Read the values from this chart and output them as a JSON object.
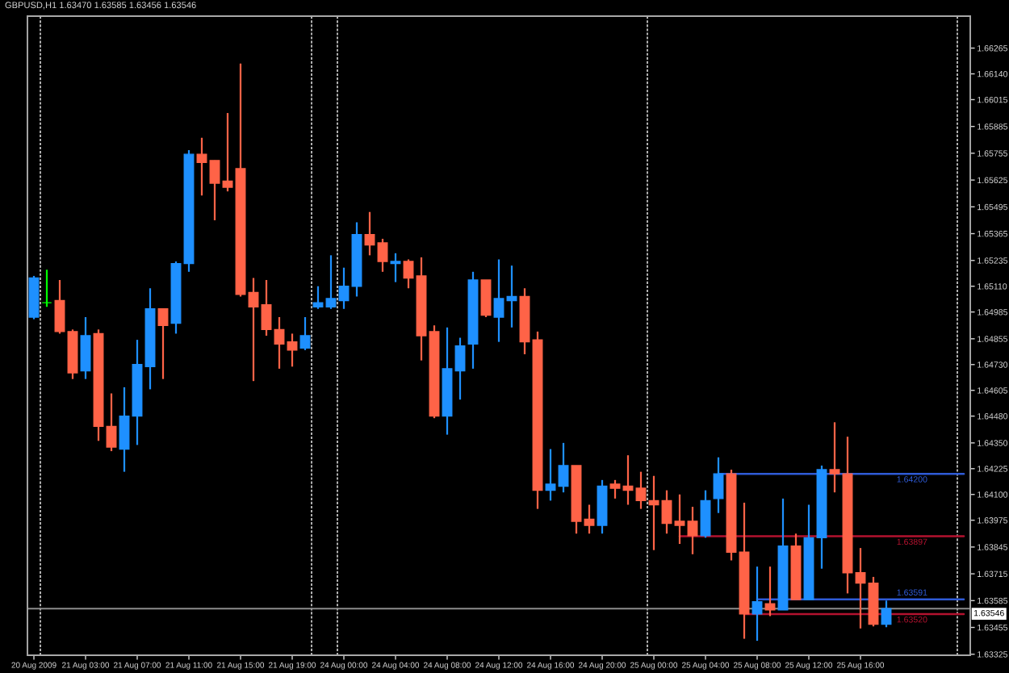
{
  "chart_data": {
    "type": "candlestick",
    "title": "GBPUSD,H1 1.63470 1.63585 1.63456 1.63546",
    "categories": [
      "20 Aug 2009",
      null,
      null,
      null,
      "21 Aug 03:00",
      null,
      null,
      null,
      "21 Aug 07:00",
      null,
      null,
      null,
      "21 Aug 11:00",
      null,
      null,
      null,
      "21 Aug 15:00",
      null,
      null,
      null,
      "21 Aug 19:00",
      null,
      null,
      null,
      "24 Aug 00:00",
      null,
      null,
      null,
      "24 Aug 04:00",
      null,
      null,
      null,
      "24 Aug 08:00",
      null,
      null,
      null,
      "24 Aug 12:00",
      null,
      null,
      null,
      "24 Aug 16:00",
      null,
      null,
      null,
      "24 Aug 20:00",
      null,
      null,
      null,
      "25 Aug 00:00",
      null,
      null,
      null,
      "25 Aug 04:00",
      null,
      null,
      null,
      "25 Aug 08:00",
      null,
      null,
      null,
      "25 Aug 12:00",
      null,
      null,
      null,
      "25 Aug 16:00",
      null,
      null,
      null,
      null,
      null,
      null,
      null,
      null
    ],
    "ohlc": [
      [
        1.6496,
        1.6516,
        1.6495,
        1.6515
      ],
      [
        1.6503,
        1.6519,
        1.6501,
        1.6503
      ],
      [
        1.6504,
        1.6514,
        1.6488,
        1.6489
      ],
      [
        1.6489,
        1.649,
        1.6466,
        1.6469
      ],
      [
        1.647,
        1.6496,
        1.6466,
        1.6487
      ],
      [
        1.6488,
        1.649,
        1.6436,
        1.6443
      ],
      [
        1.6443,
        1.6459,
        1.6431,
        1.6433
      ],
      [
        1.6432,
        1.6462,
        1.6421,
        1.6448
      ],
      [
        1.6448,
        1.6485,
        1.6434,
        1.6473
      ],
      [
        1.6472,
        1.651,
        1.6461,
        1.65
      ],
      [
        1.65,
        1.65,
        1.6466,
        1.6492
      ],
      [
        1.6493,
        1.6523,
        1.6488,
        1.6522
      ],
      [
        1.6522,
        1.6577,
        1.6518,
        1.6575
      ],
      [
        1.6575,
        1.6583,
        1.6555,
        1.6571
      ],
      [
        1.6572,
        1.6572,
        1.6543,
        1.6561
      ],
      [
        1.6562,
        1.6595,
        1.6557,
        1.6559
      ],
      [
        1.6568,
        1.6619,
        1.6506,
        1.6507
      ],
      [
        1.6508,
        1.6515,
        1.6465,
        1.6501
      ],
      [
        1.6502,
        1.6514,
        1.6487,
        1.649
      ],
      [
        1.649,
        1.6496,
        1.6471,
        1.6483
      ],
      [
        1.6484,
        1.6488,
        1.6472,
        1.648
      ],
      [
        1.6481,
        1.6496,
        1.648,
        1.6487
      ],
      [
        1.6501,
        1.6511,
        1.65,
        1.6503
      ],
      [
        1.6501,
        1.6526,
        1.65,
        1.6505
      ],
      [
        1.6504,
        1.652,
        1.65,
        1.6511
      ],
      [
        1.6511,
        1.6542,
        1.6506,
        1.6536
      ],
      [
        1.6536,
        1.6547,
        1.6526,
        1.6531
      ],
      [
        1.6532,
        1.6534,
        1.6518,
        1.6523
      ],
      [
        1.6522,
        1.6527,
        1.6513,
        1.6523
      ],
      [
        1.6523,
        1.6524,
        1.651,
        1.6515
      ],
      [
        1.6516,
        1.6525,
        1.6475,
        1.6487
      ],
      [
        1.6489,
        1.6492,
        1.6447,
        1.6448
      ],
      [
        1.6448,
        1.6491,
        1.6439,
        1.6471
      ],
      [
        1.647,
        1.6486,
        1.6456,
        1.6482
      ],
      [
        1.6483,
        1.6518,
        1.6471,
        1.6514
      ],
      [
        1.6514,
        1.6514,
        1.6496,
        1.6497
      ],
      [
        1.6496,
        1.6524,
        1.6484,
        1.6505
      ],
      [
        1.6504,
        1.6521,
        1.6491,
        1.6506
      ],
      [
        1.6506,
        1.651,
        1.6478,
        1.6484
      ],
      [
        1.6485,
        1.6489,
        1.6403,
        1.6412
      ],
      [
        1.6412,
        1.6432,
        1.6407,
        1.6415
      ],
      [
        1.6414,
        1.6435,
        1.6411,
        1.6424
      ],
      [
        1.6424,
        1.6424,
        1.6391,
        1.6397
      ],
      [
        1.6398,
        1.6405,
        1.6391,
        1.6395
      ],
      [
        1.6395,
        1.6417,
        1.6391,
        1.6414
      ],
      [
        1.6415,
        1.6417,
        1.6408,
        1.6413
      ],
      [
        1.6414,
        1.6429,
        1.6405,
        1.6412
      ],
      [
        1.6413,
        1.6421,
        1.6403,
        1.6407
      ],
      [
        1.6407,
        1.6419,
        1.6383,
        1.6405
      ],
      [
        1.6407,
        1.6412,
        1.6391,
        1.6396
      ],
      [
        1.6397,
        1.641,
        1.6386,
        1.6395
      ],
      [
        1.6397,
        1.6404,
        1.6381,
        1.639
      ],
      [
        1.639,
        1.6412,
        1.6389,
        1.6407
      ],
      [
        1.6408,
        1.6428,
        1.6401,
        1.642
      ],
      [
        1.642,
        1.6422,
        1.6378,
        1.6382
      ],
      [
        1.6382,
        1.6406,
        1.634,
        1.6352
      ],
      [
        1.6352,
        1.6375,
        1.6339,
        1.6358
      ],
      [
        1.6357,
        1.6375,
        1.6351,
        1.6354
      ],
      [
        1.6354,
        1.6408,
        1.6354,
        1.6385
      ],
      [
        1.6385,
        1.6391,
        1.6359,
        1.6359
      ],
      [
        1.6359,
        1.6405,
        1.6359,
        1.6389
      ],
      [
        1.6389,
        1.6424,
        1.6374,
        1.6422
      ],
      [
        1.6422,
        1.6445,
        1.6411,
        1.642
      ],
      [
        1.642,
        1.6438,
        1.6362,
        1.6372
      ],
      [
        1.6372,
        1.6384,
        1.6345,
        1.6367
      ],
      [
        1.6367,
        1.637,
        1.6346,
        1.6347
      ],
      [
        1.6347,
        1.63585,
        1.63456,
        1.63546
      ],
      null,
      null,
      null,
      null,
      null,
      null
    ],
    "colors": [
      "#1e90ff",
      "#00ff00",
      "#ff6347",
      "#ff6347",
      "#1e90ff",
      "#ff6347",
      "#ff6347",
      "#1e90ff",
      "#1e90ff",
      "#1e90ff",
      "#ff6347",
      "#1e90ff",
      "#1e90ff",
      "#ff6347",
      "#ff6347",
      "#ff6347",
      "#ff6347",
      "#ff6347",
      "#ff6347",
      "#ff6347",
      "#ff6347",
      "#1e90ff",
      "#1e90ff",
      "#1e90ff",
      "#1e90ff",
      "#1e90ff",
      "#ff6347",
      "#ff6347",
      "#1e90ff",
      "#ff6347",
      "#ff6347",
      "#ff6347",
      "#1e90ff",
      "#1e90ff",
      "#1e90ff",
      "#ff6347",
      "#1e90ff",
      "#1e90ff",
      "#ff6347",
      "#ff6347",
      "#1e90ff",
      "#1e90ff",
      "#ff6347",
      "#ff6347",
      "#1e90ff",
      "#ff6347",
      "#ff6347",
      "#ff6347",
      "#ff6347",
      "#ff6347",
      "#ff6347",
      "#ff6347",
      "#1e90ff",
      "#1e90ff",
      "#ff6347",
      "#ff6347",
      "#1e90ff",
      "#ff6347",
      "#1e90ff",
      "#ff6347",
      "#1e90ff",
      "#1e90ff",
      "#ff6347",
      "#ff6347",
      "#ff6347",
      "#ff6347",
      "#1e90ff",
      null,
      null,
      null,
      null,
      null,
      null
    ],
    "series": [
      {
        "type": "line",
        "name": "1.64200",
        "color": "#2f5bd6",
        "values": [
          null,
          null,
          null,
          null,
          null,
          null,
          null,
          null,
          null,
          null,
          null,
          null,
          null,
          null,
          null,
          null,
          null,
          null,
          null,
          null,
          null,
          null,
          null,
          null,
          null,
          null,
          null,
          null,
          null,
          null,
          null,
          null,
          null,
          null,
          null,
          null,
          null,
          null,
          null,
          null,
          null,
          null,
          null,
          null,
          null,
          null,
          null,
          null,
          null,
          null,
          null,
          null,
          null,
          1.642,
          1.642,
          1.642,
          1.642,
          1.642,
          1.642,
          1.642,
          1.642,
          1.642,
          1.642,
          1.642,
          1.642,
          1.642,
          1.642,
          1.642,
          1.642,
          1.642,
          1.642,
          1.642,
          1.642
        ]
      },
      {
        "type": "line",
        "name": "1.63897",
        "color": "#b3122f",
        "values": [
          null,
          null,
          null,
          null,
          null,
          null,
          null,
          null,
          null,
          null,
          null,
          null,
          null,
          null,
          null,
          null,
          null,
          null,
          null,
          null,
          null,
          null,
          null,
          null,
          null,
          null,
          null,
          null,
          null,
          null,
          null,
          null,
          null,
          null,
          null,
          null,
          null,
          null,
          null,
          null,
          null,
          null,
          null,
          null,
          null,
          null,
          null,
          null,
          null,
          null,
          1.63897,
          1.63897,
          1.63897,
          1.63897,
          1.63897,
          1.63897,
          1.63897,
          1.63897,
          1.63897,
          1.63897,
          1.63897,
          1.63897,
          1.63897,
          1.63897,
          1.63897,
          1.63897,
          1.63897,
          1.63897,
          1.63897,
          1.63897,
          1.63897,
          1.63897,
          1.63897
        ]
      },
      {
        "type": "line",
        "name": "1.63591",
        "color": "#2f5bd6",
        "values": [
          null,
          null,
          null,
          null,
          null,
          null,
          null,
          null,
          null,
          null,
          null,
          null,
          null,
          null,
          null,
          null,
          null,
          null,
          null,
          null,
          null,
          null,
          null,
          null,
          null,
          null,
          null,
          null,
          null,
          null,
          null,
          null,
          null,
          null,
          null,
          null,
          null,
          null,
          null,
          null,
          null,
          null,
          null,
          null,
          null,
          null,
          null,
          null,
          null,
          null,
          null,
          null,
          null,
          null,
          null,
          null,
          1.63591,
          1.63591,
          1.63591,
          1.63591,
          1.63591,
          1.63591,
          1.63591,
          1.63591,
          1.63591,
          1.63591,
          1.63591,
          1.63591,
          1.63591,
          1.63591,
          1.63591,
          1.63591,
          1.63591
        ]
      },
      {
        "type": "line",
        "name": "1.63520",
        "color": "#b3122f",
        "values": [
          null,
          null,
          null,
          null,
          null,
          null,
          null,
          null,
          null,
          null,
          null,
          null,
          null,
          null,
          null,
          null,
          null,
          null,
          null,
          null,
          null,
          null,
          null,
          null,
          null,
          null,
          null,
          null,
          null,
          null,
          null,
          null,
          null,
          null,
          null,
          null,
          null,
          null,
          null,
          null,
          null,
          null,
          null,
          null,
          null,
          null,
          null,
          null,
          null,
          null,
          null,
          null,
          null,
          null,
          null,
          1.6352,
          1.6352,
          1.6352,
          1.6352,
          1.6352,
          1.6352,
          1.6352,
          1.6352,
          1.6352,
          1.6352,
          1.6352,
          1.6352,
          1.6352,
          1.6352,
          1.6352,
          1.6352,
          1.6352,
          1.6352
        ]
      }
    ],
    "ref_lines": [
      {
        "axis": "y",
        "value": 1.63546,
        "label": "1.63546",
        "color": "#8c8c8c"
      }
    ],
    "ylim": [
      1.6332,
      1.6642
    ],
    "yticks": [
      1.66265,
      {
        "value": 1.6614,
        "label": "1.66140"
      },
      1.66015,
      1.65885,
      1.65755,
      1.65625,
      1.65495,
      1.65365,
      1.65235,
      {
        "value": 1.6511,
        "label": "1.65110"
      },
      1.64985,
      1.64855,
      {
        "value": 1.6473,
        "label": "1.64730"
      },
      1.64605,
      {
        "value": 1.6448,
        "label": "1.64480"
      },
      {
        "value": 1.6435,
        "label": "1.64350"
      },
      1.64225,
      {
        "value": 1.641,
        "label": "1.64100"
      },
      1.63975,
      1.63845,
      1.63715,
      1.63585,
      1.63455,
      1.63325
    ],
    "grid": false
  }
}
